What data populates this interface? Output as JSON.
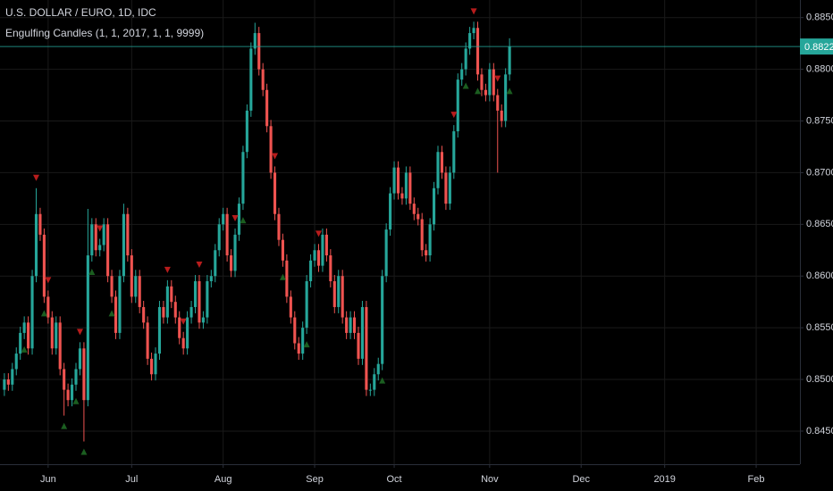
{
  "chart_data": {
    "type": "candlestick",
    "title": "U.S. DOLLAR / EURO, 1D, IDC",
    "subtitle": "Engulfing Candles (1, 1, 2017, 1, 1, 9999)",
    "up_color": "#26a69a",
    "down_color": "#ef5350",
    "grid": true,
    "xlim": [
      -1.1,
      200
    ],
    "xticks": [
      {
        "value": 11,
        "label": "Jun"
      },
      {
        "value": 32,
        "label": "Jul"
      },
      {
        "value": 55,
        "label": "Aug"
      },
      {
        "value": 78,
        "label": "Sep"
      },
      {
        "value": 98,
        "label": "Oct"
      },
      {
        "value": 122,
        "label": "Nov"
      },
      {
        "value": 145,
        "label": "Dec"
      },
      {
        "value": 166,
        "label": "2019"
      },
      {
        "value": 189,
        "label": "Feb"
      }
    ],
    "ylim": [
      0.8418,
      0.8867
    ],
    "yticks": [
      {
        "value": 0.845,
        "label": "0.8450"
      },
      {
        "value": 0.85,
        "label": "0.8500"
      },
      {
        "value": 0.855,
        "label": "0.8550"
      },
      {
        "value": 0.86,
        "label": "0.8600"
      },
      {
        "value": 0.865,
        "label": "0.8650"
      },
      {
        "value": 0.87,
        "label": "0.8700"
      },
      {
        "value": 0.875,
        "label": "0.8750"
      },
      {
        "value": 0.88,
        "label": "0.8800"
      },
      {
        "value": 0.885,
        "label": "0.8850"
      }
    ],
    "open": [
      0.849,
      0.85,
      0.8495,
      0.851,
      0.8525,
      0.8545,
      0.8555,
      0.853,
      0.86,
      0.866,
      0.864,
      0.858,
      0.856,
      0.853,
      0.8555,
      0.851,
      0.849,
      0.848,
      0.8495,
      0.851,
      0.853,
      0.848,
      0.862,
      0.865,
      0.8625,
      0.863,
      0.865,
      0.86,
      0.858,
      0.8545,
      0.86,
      0.866,
      0.862,
      0.858,
      0.86,
      0.857,
      0.8555,
      0.852,
      0.8505,
      0.8525,
      0.857,
      0.856,
      0.859,
      0.8575,
      0.856,
      0.854,
      0.853,
      0.856,
      0.857,
      0.8595,
      0.8555,
      0.856,
      0.8595,
      0.86,
      0.8625,
      0.865,
      0.866,
      0.862,
      0.8605,
      0.864,
      0.867,
      0.872,
      0.876,
      0.882,
      0.8835,
      0.88,
      0.878,
      0.8745,
      0.87,
      0.866,
      0.8635,
      0.8615,
      0.858,
      0.856,
      0.8535,
      0.8525,
      0.855,
      0.8595,
      0.8615,
      0.8625,
      0.861,
      0.864,
      0.862,
      0.8595,
      0.857,
      0.86,
      0.856,
      0.8545,
      0.856,
      0.8545,
      0.852,
      0.857,
      0.849,
      0.849,
      0.8505,
      0.8515,
      0.86,
      0.8645,
      0.868,
      0.8705,
      0.868,
      0.8675,
      0.87,
      0.867,
      0.866,
      0.8655,
      0.8625,
      0.862,
      0.865,
      0.8685,
      0.872,
      0.87,
      0.867,
      0.87,
      0.874,
      0.879,
      0.88,
      0.882,
      0.8835,
      0.884,
      0.8795,
      0.878,
      0.8775,
      0.88,
      0.8775,
      0.876,
      0.875,
      0.8795
    ],
    "high": [
      0.8506,
      0.8506,
      0.8516,
      0.8531,
      0.8551,
      0.8561,
      0.8561,
      0.8606,
      0.8685,
      0.8666,
      0.8646,
      0.8586,
      0.8566,
      0.8561,
      0.8561,
      0.8516,
      0.8496,
      0.8501,
      0.8516,
      0.8536,
      0.8536,
      0.8665,
      0.8656,
      0.8656,
      0.8636,
      0.8656,
      0.8656,
      0.8606,
      0.8586,
      0.8606,
      0.867,
      0.8666,
      0.8626,
      0.8606,
      0.8606,
      0.8576,
      0.8561,
      0.8526,
      0.8531,
      0.8576,
      0.8576,
      0.8596,
      0.8596,
      0.8581,
      0.8566,
      0.8546,
      0.8566,
      0.8576,
      0.8601,
      0.8601,
      0.8566,
      0.8601,
      0.8606,
      0.8631,
      0.8656,
      0.8666,
      0.8666,
      0.8626,
      0.8646,
      0.8676,
      0.8726,
      0.8766,
      0.8826,
      0.8845,
      0.8841,
      0.8806,
      0.8786,
      0.8751,
      0.8706,
      0.8666,
      0.8641,
      0.8621,
      0.8586,
      0.8566,
      0.8541,
      0.8556,
      0.8601,
      0.8621,
      0.8631,
      0.8631,
      0.8646,
      0.8646,
      0.8626,
      0.8601,
      0.8606,
      0.8606,
      0.8566,
      0.8566,
      0.8566,
      0.8551,
      0.8576,
      0.8576,
      0.8496,
      0.8511,
      0.8521,
      0.8606,
      0.8651,
      0.8686,
      0.8711,
      0.8711,
      0.8686,
      0.8706,
      0.8706,
      0.8676,
      0.8666,
      0.8661,
      0.8631,
      0.8656,
      0.8691,
      0.8726,
      0.8726,
      0.8706,
      0.8706,
      0.8746,
      0.8796,
      0.8806,
      0.8826,
      0.8841,
      0.8846,
      0.8846,
      0.8801,
      0.8786,
      0.8806,
      0.8806,
      0.8781,
      0.8766,
      0.8801,
      0.883
    ],
    "low": [
      0.8484,
      0.8489,
      0.8489,
      0.8504,
      0.8519,
      0.8539,
      0.8524,
      0.8524,
      0.8594,
      0.8634,
      0.8574,
      0.8554,
      0.8524,
      0.8524,
      0.8504,
      0.8465,
      0.8474,
      0.8474,
      0.8489,
      0.8504,
      0.844,
      0.8474,
      0.8614,
      0.8619,
      0.8619,
      0.8624,
      0.8594,
      0.8574,
      0.8539,
      0.8539,
      0.8594,
      0.8614,
      0.8574,
      0.8574,
      0.8564,
      0.8549,
      0.8514,
      0.8499,
      0.8499,
      0.8519,
      0.8554,
      0.8554,
      0.8569,
      0.8554,
      0.8534,
      0.8524,
      0.8524,
      0.8554,
      0.8564,
      0.8549,
      0.8549,
      0.8554,
      0.8589,
      0.8594,
      0.8619,
      0.8644,
      0.8614,
      0.8599,
      0.8599,
      0.8634,
      0.8664,
      0.8714,
      0.8754,
      0.8814,
      0.8794,
      0.8774,
      0.8739,
      0.8694,
      0.8654,
      0.8629,
      0.8609,
      0.8574,
      0.8554,
      0.8529,
      0.8519,
      0.8519,
      0.8544,
      0.8589,
      0.8609,
      0.8604,
      0.8604,
      0.8614,
      0.8589,
      0.8564,
      0.8564,
      0.8554,
      0.8539,
      0.8539,
      0.8539,
      0.8514,
      0.8514,
      0.8484,
      0.8484,
      0.8484,
      0.8499,
      0.8509,
      0.8594,
      0.8639,
      0.8674,
      0.8674,
      0.8669,
      0.8669,
      0.8664,
      0.8654,
      0.8649,
      0.8619,
      0.8614,
      0.8614,
      0.8644,
      0.8679,
      0.8694,
      0.8664,
      0.8664,
      0.8694,
      0.8734,
      0.8784,
      0.8794,
      0.8814,
      0.8829,
      0.8789,
      0.8774,
      0.8769,
      0.8769,
      0.8769,
      0.87,
      0.8744,
      0.8744,
      0.8789
    ],
    "close": [
      0.85,
      0.8495,
      0.851,
      0.8525,
      0.8545,
      0.8555,
      0.853,
      0.86,
      0.866,
      0.864,
      0.858,
      0.856,
      0.853,
      0.8555,
      0.851,
      0.849,
      0.848,
      0.8495,
      0.851,
      0.853,
      0.848,
      0.862,
      0.865,
      0.8625,
      0.863,
      0.865,
      0.86,
      0.858,
      0.8545,
      0.86,
      0.866,
      0.862,
      0.858,
      0.86,
      0.857,
      0.8555,
      0.852,
      0.8505,
      0.8525,
      0.857,
      0.856,
      0.859,
      0.8575,
      0.856,
      0.854,
      0.853,
      0.856,
      0.857,
      0.8595,
      0.8555,
      0.856,
      0.8595,
      0.86,
      0.8625,
      0.865,
      0.866,
      0.862,
      0.8605,
      0.864,
      0.867,
      0.872,
      0.876,
      0.882,
      0.8835,
      0.88,
      0.878,
      0.8745,
      0.87,
      0.866,
      0.8635,
      0.8615,
      0.858,
      0.856,
      0.8535,
      0.8525,
      0.855,
      0.8595,
      0.8615,
      0.8625,
      0.861,
      0.864,
      0.862,
      0.8595,
      0.857,
      0.86,
      0.856,
      0.8545,
      0.856,
      0.8545,
      0.852,
      0.857,
      0.849,
      0.849,
      0.8505,
      0.8515,
      0.86,
      0.8645,
      0.868,
      0.8705,
      0.868,
      0.8675,
      0.87,
      0.867,
      0.866,
      0.8655,
      0.8625,
      0.862,
      0.865,
      0.8685,
      0.872,
      0.87,
      0.867,
      0.87,
      0.874,
      0.879,
      0.88,
      0.882,
      0.8835,
      0.884,
      0.8795,
      0.878,
      0.8775,
      0.88,
      0.8775,
      0.876,
      0.875,
      0.8795,
      0.8822
    ],
    "bearish_signals": [
      8,
      11,
      19,
      24,
      41,
      45,
      49,
      58,
      68,
      79,
      113,
      118,
      124
    ],
    "bullish_signals": [
      5,
      10,
      15,
      18,
      20,
      22,
      27,
      60,
      70,
      76,
      95,
      116,
      119,
      127
    ]
  }
}
